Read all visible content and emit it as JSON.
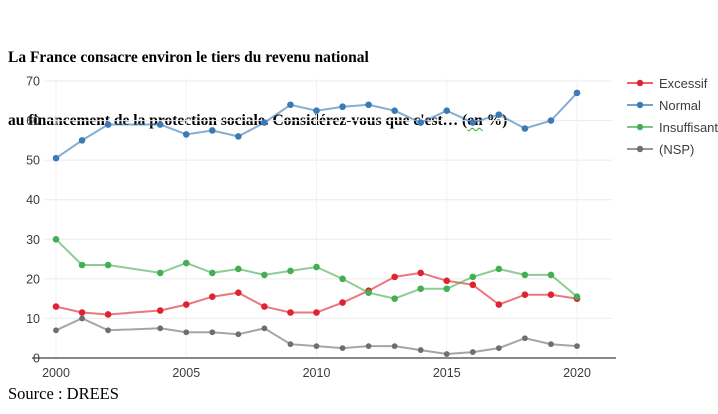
{
  "header": {
    "title_line1": "La France consacre environ le tiers du revenu national",
    "title_line2_before": "au financement de la protection sociale. Considérez-vous que c'est… (",
    "title_underlined_word": "en",
    "title_line2_after": " %)"
  },
  "footer": {
    "source": "Source : DREES"
  },
  "colors": {
    "excessif": "#e02330",
    "normal": "#3c7ab7",
    "insuffisant": "#43af52",
    "nsp": "#6e6e6e",
    "gridline": "#ebebeb",
    "axis_line": "#888888"
  },
  "chart_data": {
    "type": "line",
    "title": "",
    "xlabel": "",
    "ylabel": "",
    "unit": "%",
    "x": [
      2000,
      2001,
      2002,
      2004,
      2005,
      2006,
      2007,
      2008,
      2009,
      2010,
      2011,
      2012,
      2013,
      2014,
      2015,
      2016,
      2017,
      2018,
      2019,
      2020
    ],
    "note_missing_year": "2003 has no data point; the line connects 2002 to 2004",
    "series": [
      {
        "name": "Excessif",
        "color": "#e02330",
        "values": [
          13,
          11.5,
          11,
          12,
          13.5,
          15.5,
          16.5,
          13,
          11.5,
          11.5,
          14,
          17,
          20.5,
          21.5,
          19.5,
          18.5,
          13.5,
          16,
          16,
          15
        ]
      },
      {
        "name": "Normal",
        "color": "#3c7ab7",
        "values": [
          50.5,
          55,
          59,
          59,
          56.5,
          57.5,
          56,
          59.5,
          64,
          62.5,
          63.5,
          64,
          62.5,
          59.5,
          62.5,
          59.5,
          61.5,
          58,
          60,
          67
        ]
      },
      {
        "name": "Insuffisant",
        "color": "#43af52",
        "values": [
          30,
          23.5,
          23.5,
          21.5,
          24,
          21.5,
          22.5,
          21,
          22,
          23,
          20,
          16.5,
          15,
          17.5,
          17.5,
          20.5,
          22.5,
          21,
          21,
          15.5
        ]
      },
      {
        "name": "(NSP)",
        "color": "#6e6e6e",
        "values": [
          7,
          10,
          7,
          7.5,
          6.5,
          6.5,
          6,
          7.5,
          3.5,
          3,
          2.5,
          3,
          3,
          2,
          1,
          1.5,
          2.5,
          5,
          3.5,
          3
        ]
      }
    ],
    "xticks": [
      2000,
      2005,
      2010,
      2015,
      2020
    ],
    "yticks": [
      0,
      10,
      20,
      30,
      40,
      50,
      60,
      70
    ],
    "xlim": [
      2000,
      2020
    ],
    "ylim": [
      0,
      70
    ],
    "grid": true,
    "legend_position": "right"
  }
}
